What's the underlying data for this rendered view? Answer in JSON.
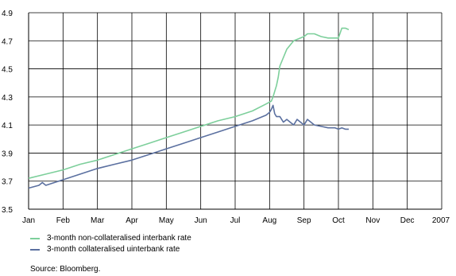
{
  "chart_data": {
    "type": "line",
    "title": "",
    "xlabel": "",
    "ylabel": "",
    "ylim": [
      3.5,
      4.9
    ],
    "yticks": [
      "3.5",
      "3.7",
      "3.9",
      "4.1",
      "4.3",
      "4.5",
      "4.7",
      "4.9"
    ],
    "xlim": [
      0,
      12
    ],
    "months": [
      "Jan",
      "Feb",
      "Mar",
      "Apr",
      "May",
      "Jun",
      "Jul",
      "Aug",
      "Sep",
      "Oct",
      "Nov",
      "Dec"
    ],
    "year_label": "2007",
    "grid": true,
    "legend_placement": "bottom",
    "series": [
      {
        "name": "3-month non-collateralised interbank rate",
        "color": "#7dcf9b",
        "x": [
          0.0,
          0.5,
          1.0,
          1.5,
          2.0,
          2.5,
          3.0,
          3.5,
          4.0,
          4.5,
          5.0,
          5.5,
          6.0,
          6.5,
          6.9,
          7.05,
          7.1,
          7.15,
          7.2,
          7.25,
          7.3,
          7.5,
          7.7,
          7.9,
          8.0,
          8.1,
          8.3,
          8.5,
          8.7,
          8.9,
          9.0,
          9.1,
          9.2,
          9.3
        ],
        "y": [
          3.72,
          3.75,
          3.78,
          3.82,
          3.85,
          3.89,
          3.93,
          3.97,
          4.01,
          4.05,
          4.09,
          4.13,
          4.16,
          4.2,
          4.25,
          4.27,
          4.3,
          4.34,
          4.38,
          4.44,
          4.52,
          4.64,
          4.7,
          4.72,
          4.73,
          4.75,
          4.75,
          4.73,
          4.72,
          4.72,
          4.72,
          4.79,
          4.79,
          4.78
        ]
      },
      {
        "name": "3-month collateralised uinterbank rate",
        "color": "#5b70a0",
        "x": [
          0.0,
          0.3,
          0.4,
          0.5,
          1.0,
          1.5,
          2.0,
          2.5,
          3.0,
          3.5,
          4.0,
          4.5,
          5.0,
          5.5,
          6.0,
          6.5,
          6.9,
          7.0,
          7.05,
          7.1,
          7.15,
          7.2,
          7.3,
          7.4,
          7.5,
          7.6,
          7.7,
          7.8,
          8.0,
          8.1,
          8.3,
          8.5,
          8.7,
          8.9,
          9.0,
          9.1,
          9.2,
          9.3
        ],
        "y": [
          3.65,
          3.67,
          3.69,
          3.67,
          3.71,
          3.75,
          3.79,
          3.82,
          3.85,
          3.89,
          3.93,
          3.97,
          4.01,
          4.05,
          4.09,
          4.13,
          4.17,
          4.19,
          4.21,
          4.24,
          4.18,
          4.16,
          4.16,
          4.12,
          4.14,
          4.12,
          4.1,
          4.14,
          4.1,
          4.14,
          4.1,
          4.09,
          4.08,
          4.08,
          4.07,
          4.08,
          4.07,
          4.07
        ]
      }
    ],
    "source": "Source: Bloomberg."
  }
}
